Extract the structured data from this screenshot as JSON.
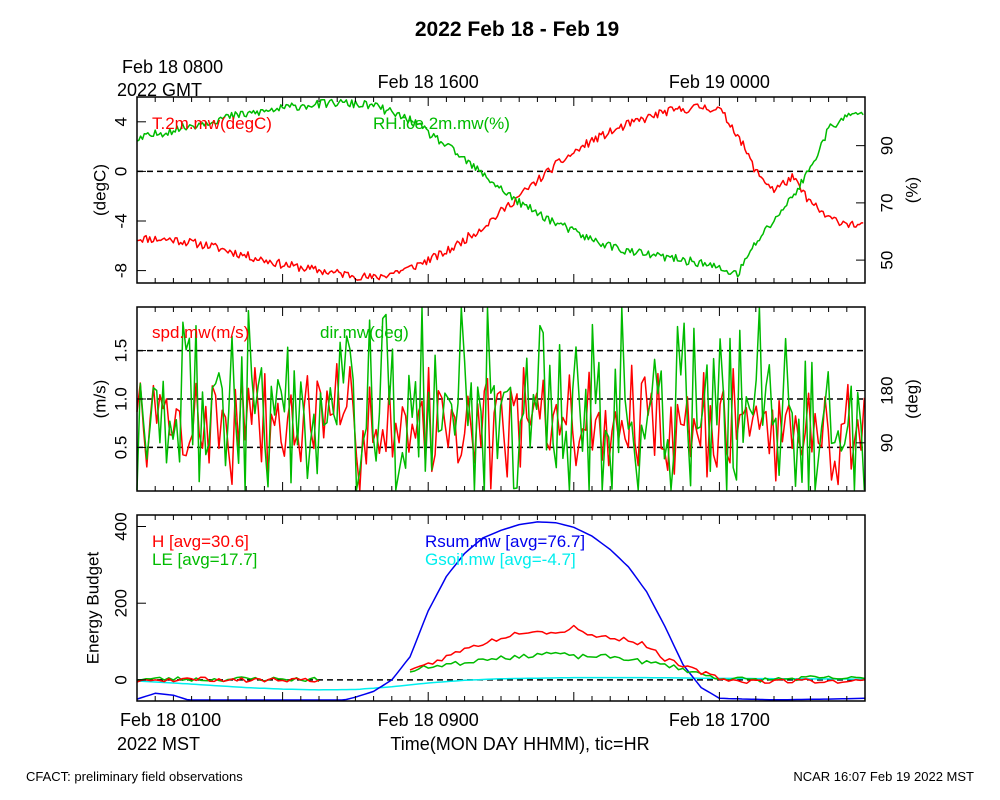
{
  "title": "2022 Feb 18 - Feb 19",
  "gmt_start_line1": "Feb 18 0800",
  "gmt_start_line2": "2022 GMT",
  "gmt_ticks": [
    "Feb 18 1600",
    "Feb 19 0000"
  ],
  "mst_ticks": [
    "Feb 18 0100",
    "Feb 18 0900",
    "Feb 18 1700"
  ],
  "mst_tz": "2022 MST",
  "xlabel": "Time(MON DAY HHMM), tic=HR",
  "footer_left": "CFACT: preliminary field observations",
  "footer_right": "NCAR 16:07 Feb 19 2022 MST",
  "colors": {
    "red": "#ff0000",
    "green": "#00bb00",
    "blue": "#0000ee",
    "cyan": "#00eeee",
    "axis": "#000000"
  },
  "chart_data": [
    {
      "type": "line",
      "x_hours_mst": [
        0,
        40
      ],
      "left_axis": {
        "label": "(degC)",
        "ticks": [
          4,
          0,
          -4,
          -8
        ],
        "tick_labels": [
          "4",
          "0",
          "-4",
          "-8"
        ],
        "range": [
          -9,
          6
        ]
      },
      "right_axis": {
        "label": "(%)",
        "ticks": [
          90,
          70,
          50
        ],
        "tick_labels": [
          "90",
          "70",
          "50"
        ],
        "range": [
          42,
          107
        ]
      },
      "reference_lines": [
        0
      ],
      "series": [
        {
          "name": "T.2m.mw(degC)",
          "axis": "left",
          "color": "red",
          "keypoints": [
            [
              0,
              -5.4
            ],
            [
              2,
              -5.5
            ],
            [
              4,
              -6.0
            ],
            [
              6,
              -6.8
            ],
            [
              8,
              -7.5
            ],
            [
              10,
              -8.0
            ],
            [
              12,
              -8.4
            ],
            [
              13,
              -8.6
            ],
            [
              15,
              -7.8
            ],
            [
              17,
              -6.5
            ],
            [
              19,
              -4.5
            ],
            [
              21,
              -2.0
            ],
            [
              23,
              0.5
            ],
            [
              25,
              2.5
            ],
            [
              27,
              3.8
            ],
            [
              29,
              4.8
            ],
            [
              31,
              5.2
            ],
            [
              32,
              5.0
            ],
            [
              33,
              3.0
            ],
            [
              34,
              0.0
            ],
            [
              35,
              -1.5
            ],
            [
              36,
              -0.5
            ],
            [
              37,
              -2.5
            ],
            [
              38,
              -3.8
            ],
            [
              40,
              -4.5
            ]
          ],
          "noise": 0.35
        },
        {
          "name": "RH.ice.2m.mw(%)",
          "axis": "left_mapped_right",
          "color": "green",
          "keypoints": [
            [
              0,
              92
            ],
            [
              1,
              94
            ],
            [
              3,
              97
            ],
            [
              5,
              100
            ],
            [
              7,
              102
            ],
            [
              9,
              104
            ],
            [
              11,
              105
            ],
            [
              13,
              104
            ],
            [
              15,
              99
            ],
            [
              17,
              90
            ],
            [
              19,
              80
            ],
            [
              21,
              70
            ],
            [
              23,
              63
            ],
            [
              25,
              57
            ],
            [
              27,
              53
            ],
            [
              29,
              51
            ],
            [
              31,
              49
            ],
            [
              33,
              45
            ],
            [
              34,
              56
            ],
            [
              35,
              64
            ],
            [
              36,
              72
            ],
            [
              37,
              82
            ],
            [
              38,
              96
            ],
            [
              39,
              100
            ],
            [
              40,
              102
            ]
          ],
          "noise": 1.5
        }
      ]
    },
    {
      "type": "line",
      "left_axis": {
        "label": "(m/s)",
        "ticks": [
          1.5,
          1.0,
          0.5
        ],
        "tick_labels": [
          "1.5",
          "1.0",
          "0.5"
        ],
        "range": [
          0.05,
          1.95
        ]
      },
      "right_axis": {
        "label": "(deg)",
        "ticks": [
          180,
          90
        ],
        "tick_labels": [
          "180",
          "90"
        ],
        "range": [
          7,
          324
        ]
      },
      "reference_lines": [
        1.5,
        1.0,
        0.5
      ],
      "series": [
        {
          "name": "spd.mw(m/s)",
          "axis": "left",
          "color": "red",
          "mean": 0.75,
          "spread": 0.55,
          "seed": 7
        },
        {
          "name": "dir.mw(deg)",
          "axis": "right",
          "color": "green",
          "mean": 150,
          "spread": 150,
          "seed": 19
        }
      ]
    },
    {
      "type": "line",
      "left_axis": {
        "label": "Energy Budget",
        "ticks": [
          400,
          200,
          0
        ],
        "tick_labels": [
          "400",
          "200",
          "0"
        ],
        "range": [
          -55,
          430
        ]
      },
      "reference_lines": [
        0
      ],
      "series": [
        {
          "name": "H [avg=30.6]",
          "color": "red",
          "segments": [
            [
              [
                0,
                0
              ],
              [
                2,
                1
              ],
              [
                4,
                2
              ],
              [
                6,
                -1
              ],
              [
                8,
                1
              ],
              [
                10,
                0
              ]
            ],
            [
              [
                15,
                20
              ],
              [
                16,
                40
              ],
              [
                17,
                60
              ],
              [
                18,
                80
              ],
              [
                19,
                95
              ],
              [
                20,
                110
              ],
              [
                21,
                125
              ],
              [
                22,
                130
              ],
              [
                23,
                120
              ],
              [
                24,
                140
              ],
              [
                25,
                115
              ],
              [
                26,
                110
              ],
              [
                27,
                105
              ],
              [
                28,
                90
              ],
              [
                29,
                55
              ],
              [
                30,
                35
              ],
              [
                31,
                20
              ],
              [
                32,
                5
              ],
              [
                33,
                -3
              ],
              [
                35,
                -3
              ],
              [
                37,
                -2
              ],
              [
                38,
                -4
              ],
              [
                40,
                -3
              ]
            ]
          ]
        },
        {
          "name": "LE [avg=17.7]",
          "color": "green",
          "segments": [
            [
              [
                0,
                2
              ],
              [
                2,
                3
              ],
              [
                4,
                1
              ],
              [
                6,
                3
              ],
              [
                8,
                2
              ],
              [
                10,
                1
              ]
            ],
            [
              [
                15,
                20
              ],
              [
                16,
                35
              ],
              [
                17,
                40
              ],
              [
                18,
                45
              ],
              [
                19,
                55
              ],
              [
                20,
                60
              ],
              [
                21,
                58
              ],
              [
                22,
                68
              ],
              [
                23,
                70
              ],
              [
                24,
                60
              ],
              [
                25,
                62
              ],
              [
                26,
                60
              ],
              [
                27,
                55
              ],
              [
                28,
                45
              ],
              [
                29,
                40
              ],
              [
                30,
                28
              ],
              [
                31,
                15
              ],
              [
                32,
                5
              ],
              [
                34,
                0
              ],
              [
                37,
                5
              ],
              [
                40,
                3
              ]
            ]
          ]
        },
        {
          "name": "Rsum.mw [avg=76.7]",
          "color": "blue",
          "segments": [
            [
              [
                0,
                -50
              ],
              [
                1,
                -35
              ],
              [
                2,
                -40
              ],
              [
                3,
                -55
              ],
              [
                5,
                -58
              ],
              [
                9,
                -58
              ],
              [
                11,
                -57
              ],
              [
                12,
                -45
              ],
              [
                13,
                -30
              ],
              [
                14,
                0
              ],
              [
                15,
                60
              ],
              [
                16,
                180
              ],
              [
                17,
                270
              ],
              [
                18,
                330
              ],
              [
                19,
                370
              ],
              [
                20,
                390
              ],
              [
                21,
                405
              ],
              [
                22,
                412
              ],
              [
                23,
                410
              ],
              [
                24,
                398
              ],
              [
                25,
                375
              ],
              [
                26,
                340
              ],
              [
                27,
                295
              ],
              [
                28,
                230
              ],
              [
                29,
                140
              ],
              [
                30,
                40
              ],
              [
                31,
                -20
              ],
              [
                32,
                -48
              ],
              [
                35,
                -52
              ],
              [
                38,
                -50
              ],
              [
                40,
                -48
              ]
            ]
          ]
        },
        {
          "name": "Gsoil.mw [avg=-4.7]",
          "color": "cyan",
          "segments": [
            [
              [
                0,
                -3
              ],
              [
                2,
                -8
              ],
              [
                4,
                -14
              ],
              [
                6,
                -20
              ],
              [
                8,
                -24
              ],
              [
                10,
                -26
              ],
              [
                12,
                -25
              ],
              [
                14,
                -18
              ],
              [
                16,
                -8
              ],
              [
                18,
                -1
              ],
              [
                20,
                3
              ],
              [
                24,
                6
              ],
              [
                28,
                6
              ],
              [
                32,
                4
              ],
              [
                36,
                3
              ],
              [
                40,
                2
              ]
            ]
          ]
        }
      ]
    }
  ]
}
